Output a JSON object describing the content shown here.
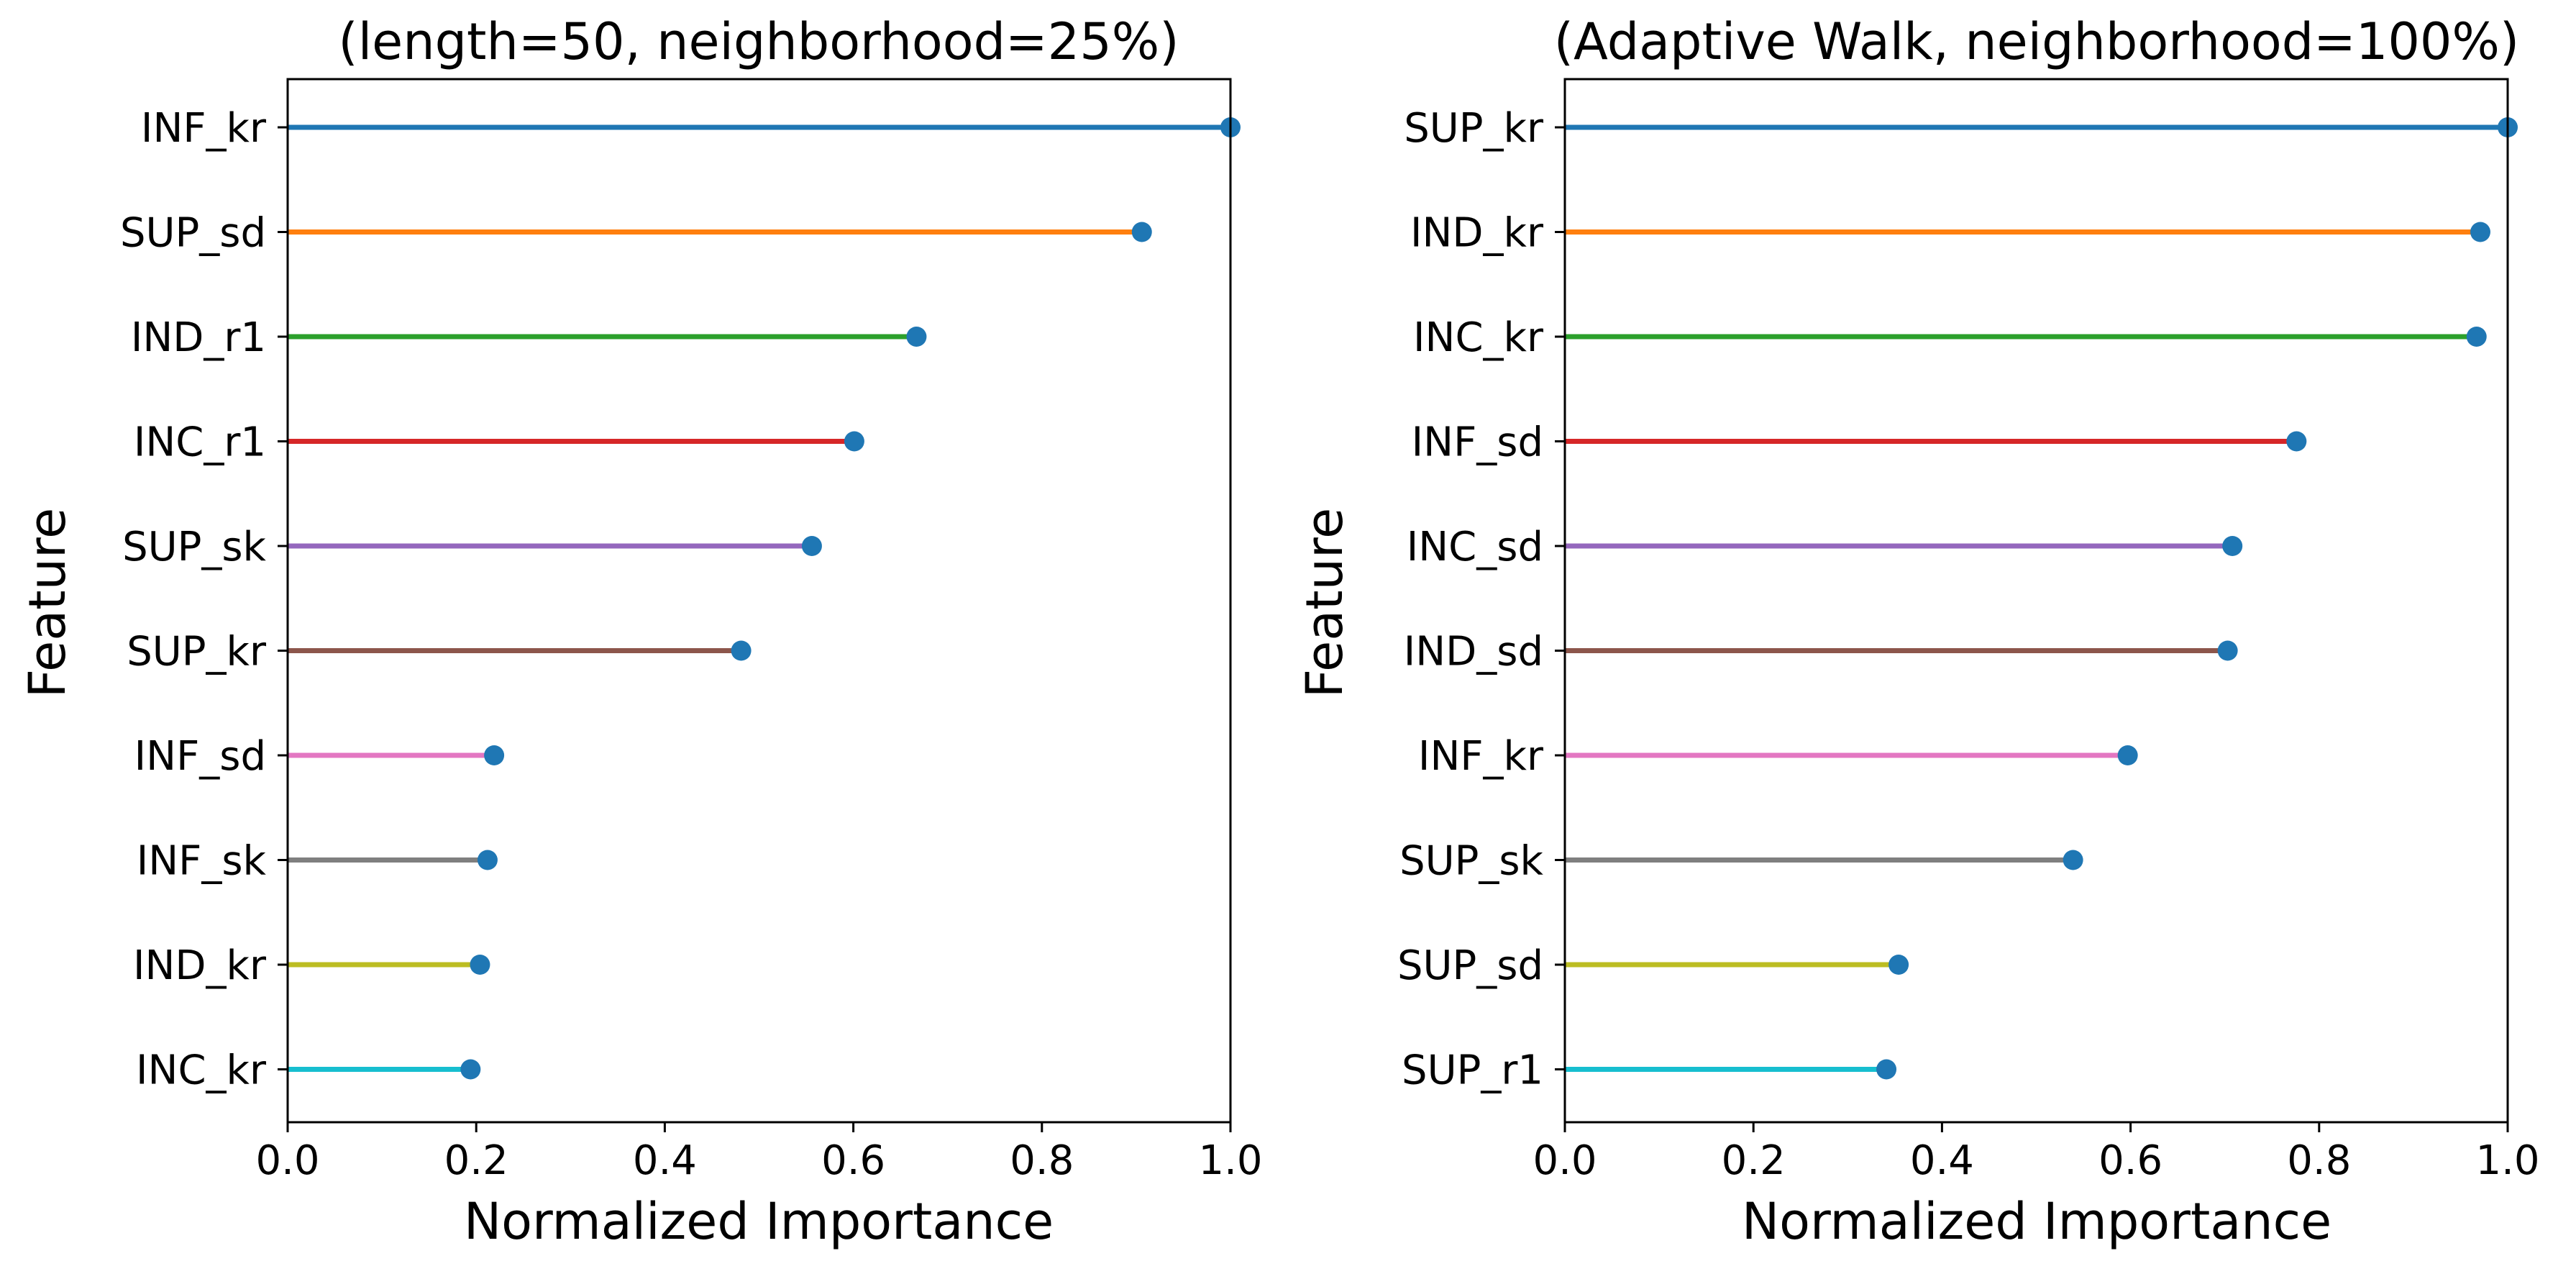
{
  "chart_data": [
    {
      "type": "lollipop",
      "title": "(length=50, neighborhood=25%)",
      "xlabel": "Normalized Importance",
      "ylabel": "Feature",
      "xlim": [
        0.0,
        1.0
      ],
      "xticks": [
        "0.0",
        "0.2",
        "0.4",
        "0.6",
        "0.8",
        "1.0"
      ],
      "grid": false,
      "categories": [
        "INF_kr",
        "SUP_sd",
        "IND_r1",
        "INC_r1",
        "SUP_sk",
        "SUP_kr",
        "INF_sd",
        "INF_sk",
        "IND_kr",
        "INC_kr"
      ],
      "values": [
        1.0,
        0.906,
        0.667,
        0.601,
        0.556,
        0.481,
        0.219,
        0.212,
        0.204,
        0.194
      ]
    },
    {
      "type": "lollipop",
      "title": "(Adaptive Walk, neighborhood=100%)",
      "xlabel": "Normalized Importance",
      "ylabel": "Feature",
      "xlim": [
        0.0,
        1.0
      ],
      "xticks": [
        "0.0",
        "0.2",
        "0.4",
        "0.6",
        "0.8",
        "1.0"
      ],
      "grid": false,
      "categories": [
        "SUP_kr",
        "IND_kr",
        "INC_kr",
        "INF_sd",
        "INC_sd",
        "IND_sd",
        "INF_kr",
        "SUP_sk",
        "SUP_sd",
        "SUP_r1"
      ],
      "values": [
        1.0,
        0.971,
        0.967,
        0.776,
        0.708,
        0.703,
        0.597,
        0.539,
        0.354,
        0.341
      ]
    }
  ],
  "colors": {
    "stems": [
      "#1f77b4",
      "#ff7f0e",
      "#2ca02c",
      "#d62728",
      "#9467bd",
      "#8c564b",
      "#e377c2",
      "#7f7f7f",
      "#bcbd22",
      "#17becf"
    ],
    "marker": "#1f77b4",
    "axes": "#000000"
  }
}
